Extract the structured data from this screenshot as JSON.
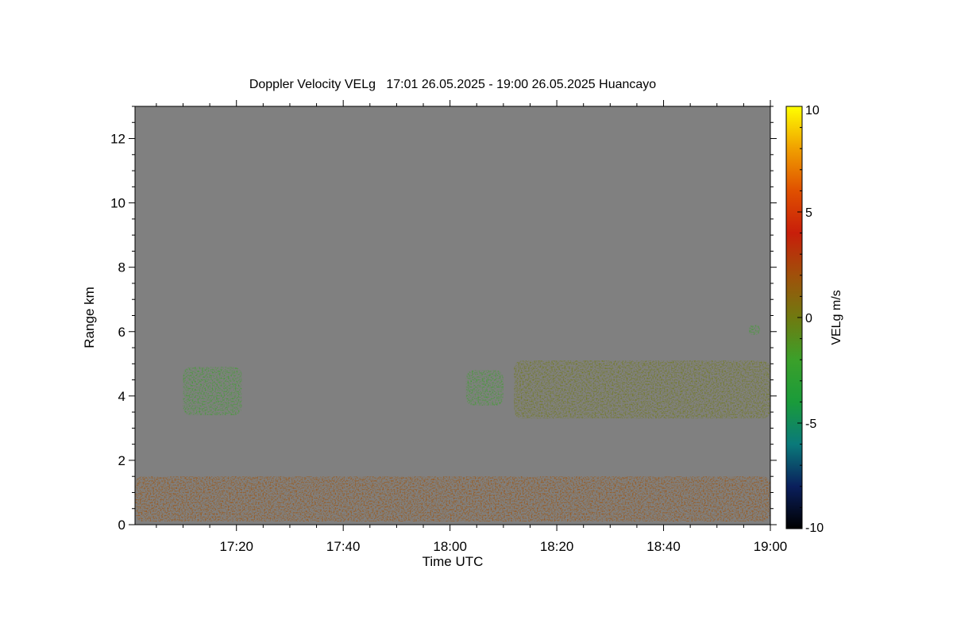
{
  "chart_data": {
    "type": "heatmap",
    "title": "Doppler Velocity VELg   17:01 26.05.2025 - 19:00 26.05.2025 Huancayo",
    "xlabel": "Time UTC",
    "ylabel": "Range km",
    "x_range": [
      "17:01",
      "19:00"
    ],
    "x_ticks": [
      "17:20",
      "17:40",
      "18:00",
      "18:20",
      "18:40",
      "19:00"
    ],
    "y_range": [
      0,
      13
    ],
    "y_ticks": [
      0,
      2,
      4,
      6,
      8,
      10,
      12
    ],
    "colorbar": {
      "label": "VELg m/s",
      "range": [
        -10,
        10
      ],
      "ticks": [
        10,
        5,
        0,
        -5,
        -10
      ],
      "colors": [
        "#000000",
        "#0a1f5c",
        "#0a7a7a",
        "#1a9b3a",
        "#3ba02a",
        "#707a10",
        "#a0500a",
        "#c81e0a",
        "#e05000",
        "#f0a000",
        "#ffff00"
      ],
      "background": "#808080"
    },
    "features": [
      {
        "name": "cloud layer",
        "time_start": "17:10",
        "time_end": "17:21",
        "range_km": [
          3.4,
          4.9
        ],
        "velocity_ms": -1.5
      },
      {
        "name": "cloud layer",
        "time_start": "18:03",
        "time_end": "18:10",
        "range_km": [
          3.7,
          4.8
        ],
        "velocity_ms": -1.5
      },
      {
        "name": "cloud layer",
        "time_start": "18:12",
        "time_end": "19:00",
        "range_km": [
          3.3,
          5.1
        ],
        "velocity_ms": -1.0
      },
      {
        "name": "cloud fragment",
        "time_start": "18:56",
        "time_end": "18:58",
        "range_km": [
          5.9,
          6.2
        ],
        "velocity_ms": -2.0
      },
      {
        "name": "boundary layer",
        "time_start": "17:01",
        "time_end": "19:00",
        "range_km": [
          0.1,
          1.5
        ],
        "velocity_ms": 1.5
      }
    ]
  }
}
